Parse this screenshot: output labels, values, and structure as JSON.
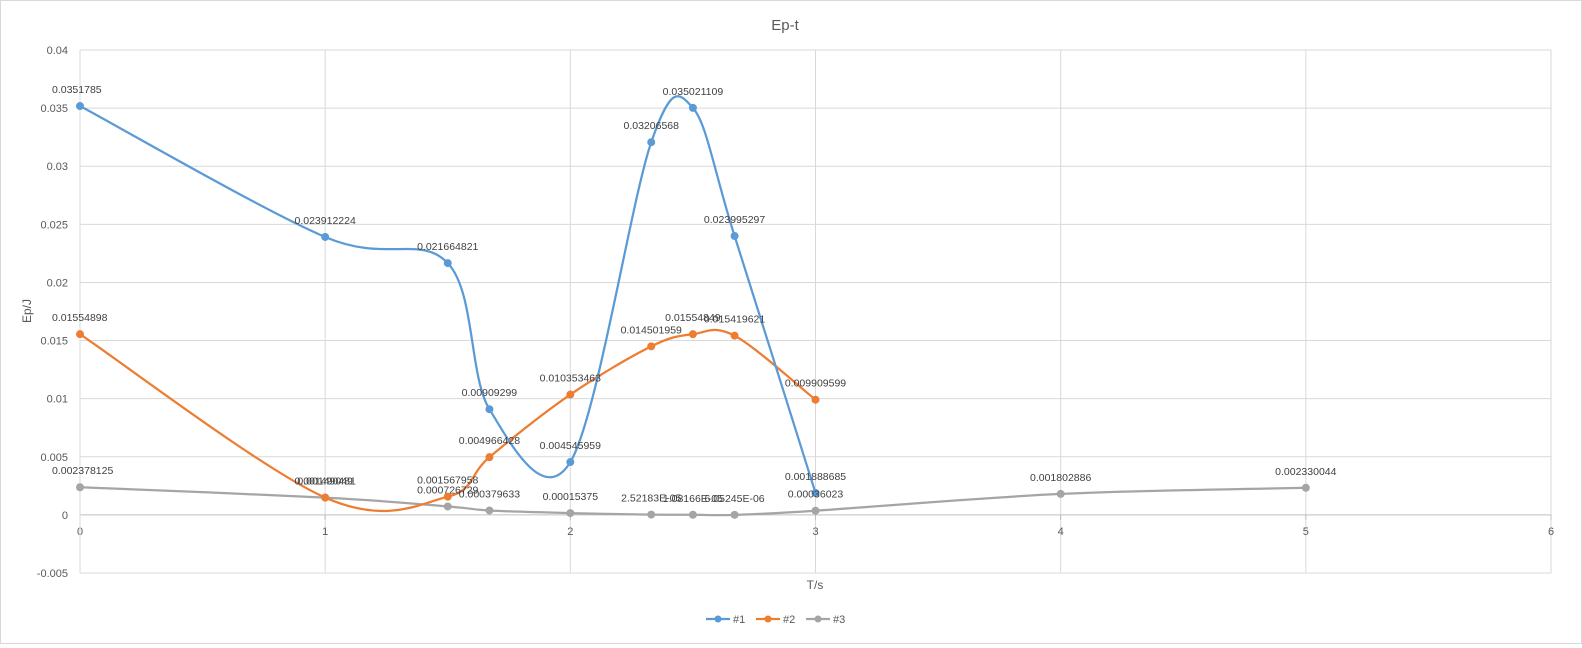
{
  "chart_data": {
    "type": "scatter",
    "title": "Ep-t",
    "xlabel": "T/s",
    "ylabel": "Ep/J",
    "xlim": [
      0,
      6
    ],
    "ylim": [
      -0.005,
      0.04
    ],
    "x_ticks": [
      "0",
      "1",
      "2",
      "3",
      "4",
      "5",
      "6"
    ],
    "y_ticks": [
      "-0.005",
      "0",
      "0.005",
      "0.01",
      "0.015",
      "0.02",
      "0.025",
      "0.03",
      "0.035",
      "0.04"
    ],
    "grid": true,
    "smooth": true,
    "legend_position": "bottom",
    "series": [
      {
        "name": "#1",
        "color": "#5b9bd5",
        "x": [
          0,
          1,
          1.5,
          1.67,
          2,
          2.33,
          2.5,
          2.67,
          3
        ],
        "y": [
          0.0351785,
          0.023912224,
          0.021664821,
          0.00909299,
          0.004545959,
          0.03206568,
          0.035021109,
          0.023995297,
          0.001888685
        ],
        "labels": [
          "0.0351785",
          "0.023912224",
          "0.021664821",
          "0.00909299",
          "0.004545959",
          "0.03206568",
          "0.035021109",
          "0.023995297",
          "0.001888685"
        ]
      },
      {
        "name": "#2",
        "color": "#ed7d31",
        "x": [
          0,
          1,
          1.5,
          1.67,
          2,
          2.33,
          2.5,
          2.67,
          3
        ],
        "y": [
          0.01554898,
          0.001490481,
          0.001567958,
          0.004966428,
          0.010353463,
          0.014501959,
          0.01554849,
          0.015419621,
          0.009909599
        ],
        "labels": [
          "0.01554898",
          "0.001490481",
          "0.001567958",
          "0.004966428",
          "0.010353463",
          "0.014501959",
          "0.01554849",
          "0.015419621",
          "0.009909599"
        ]
      },
      {
        "name": "#3",
        "color": "#a5a5a5",
        "x": [
          0,
          1,
          1.5,
          1.67,
          2,
          2.33,
          2.5,
          2.67,
          3,
          4,
          5
        ],
        "y": [
          0.002378125,
          0.00149049,
          0.000726729,
          0.000379633,
          0.00015375,
          2.52183e-05,
          1.08166e-05,
          6.05245e-06,
          0.00036023,
          0.001802886,
          0.002330044
        ],
        "labels": [
          "0.002378125",
          "0.00149049",
          "0.000726729",
          "0.000379633",
          "0.00015375",
          "2.52183E-05",
          "1.08166E-05",
          "6.05245E-06",
          "0.00036023",
          "0.001802886",
          "0.002330044"
        ]
      }
    ]
  }
}
